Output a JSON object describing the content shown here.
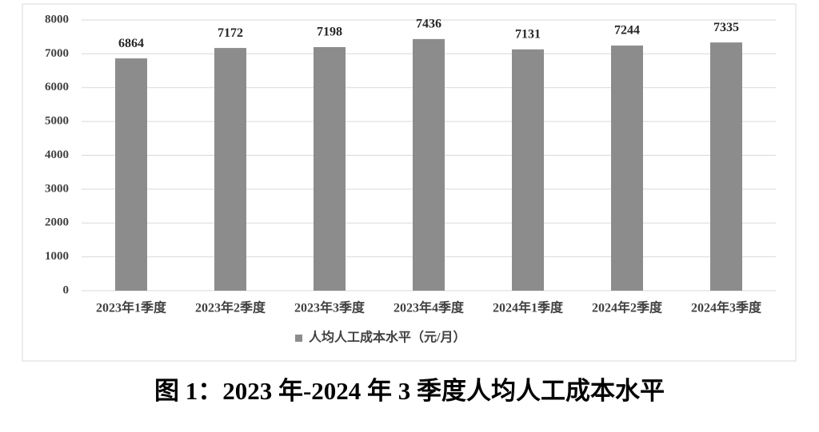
{
  "chart_data": {
    "type": "bar",
    "title": "图 1：2023 年-2024 年 3 季度人均人工成本水平",
    "categories": [
      "2023年1季度",
      "2023年2季度",
      "2023年3季度",
      "2023年4季度",
      "2024年1季度",
      "2024年2季度",
      "2024年3季度"
    ],
    "series": [
      {
        "name": "人均人工成本水平（元/月）",
        "color": "#8c8c8c",
        "values": [
          6864,
          7172,
          7198,
          7436,
          7131,
          7244,
          7335
        ]
      }
    ],
    "ylim": [
      0,
      8000
    ],
    "yticks": [
      0,
      1000,
      2000,
      3000,
      4000,
      5000,
      6000,
      7000,
      8000
    ],
    "grid": true,
    "legend": "bottom"
  }
}
